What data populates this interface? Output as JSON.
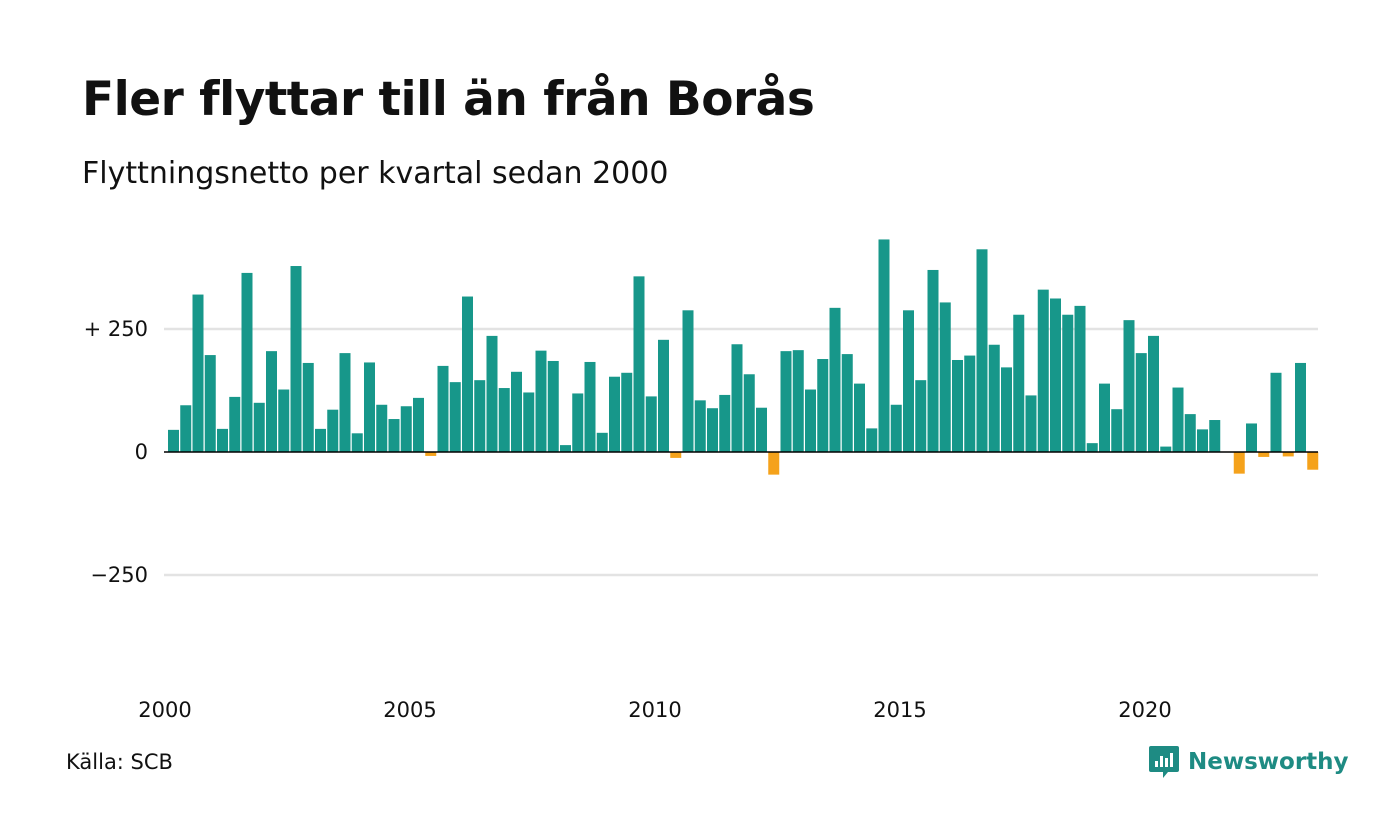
{
  "title": "Fler flyttar till än från Borås",
  "subtitle": "Flyttningsnetto per kvartal sedan 2000",
  "source": "Källa: SCB",
  "brand": {
    "name": "Newsworthy",
    "icon": "newsworthy-logo-icon"
  },
  "colors": {
    "positive": "#17978a",
    "negative": "#f5a21b",
    "grid": "#e3e3e3",
    "zero": "#000000",
    "brand": "#1e8b83"
  },
  "chart_data": {
    "type": "bar",
    "x_start_year": 2000,
    "x_ticks": [
      "2000",
      "2005",
      "2010",
      "2015",
      "2020"
    ],
    "y_ticks": [
      {
        "value": 250,
        "label": "+ 250"
      },
      {
        "value": 0,
        "label": "0"
      },
      {
        "value": -250,
        "label": "−250"
      }
    ],
    "ylim": [
      -460,
      460
    ],
    "grid": true,
    "values": [
      45,
      95,
      320,
      197,
      47,
      112,
      364,
      100,
      205,
      127,
      378,
      181,
      47,
      86,
      201,
      38,
      182,
      96,
      67,
      93,
      110,
      -8,
      175,
      142,
      316,
      146,
      236,
      130,
      163,
      121,
      206,
      185,
      14,
      119,
      183,
      39,
      153,
      161,
      357,
      113,
      228,
      -12,
      288,
      105,
      89,
      116,
      219,
      158,
      90,
      -46,
      205,
      207,
      127,
      189,
      293,
      199,
      139,
      48,
      432,
      96,
      288,
      146,
      370,
      304,
      187,
      196,
      412,
      218,
      172,
      279,
      115,
      330,
      312,
      279,
      297,
      18,
      139,
      87,
      268,
      201,
      236,
      11,
      131,
      77,
      46,
      65,
      0,
      -44,
      58,
      -10,
      161,
      -9,
      181,
      -36
    ]
  }
}
